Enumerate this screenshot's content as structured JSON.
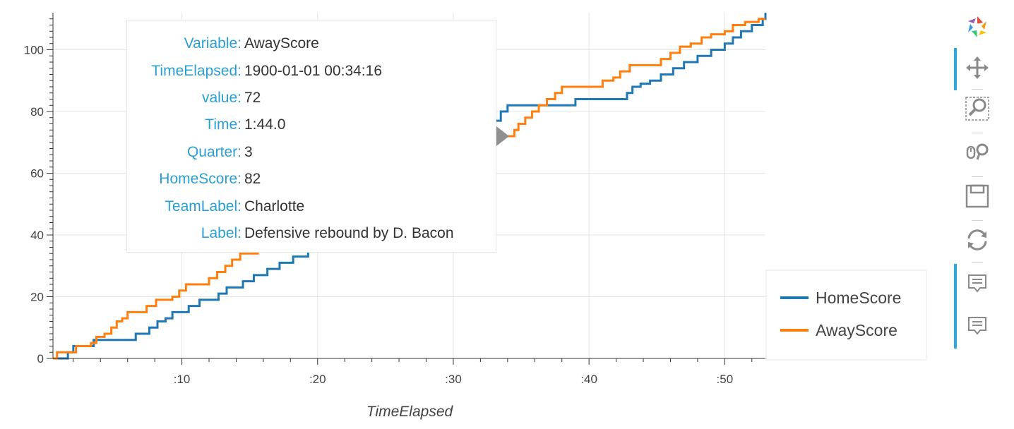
{
  "chart_data": {
    "type": "line",
    "xlabel": "TimeElapsed",
    "ylabel": "",
    "x_unit": "minutes elapsed",
    "xlim": [
      0.5,
      53
    ],
    "ylim": [
      0,
      112
    ],
    "x_ticks": [
      10,
      20,
      30,
      40,
      50
    ],
    "x_tick_labels": [
      ":10",
      ":20",
      ":30",
      ":40",
      ":50"
    ],
    "y_ticks": [
      0,
      20,
      40,
      60,
      80,
      100
    ],
    "y_tick_labels": [
      "0",
      "20",
      "40",
      "60",
      "80",
      "100"
    ],
    "grid": true,
    "legend_position": "right",
    "series": [
      {
        "name": "HomeScore",
        "color": "#1f77b4",
        "points": [
          [
            0.5,
            0
          ],
          [
            1.3,
            0
          ],
          [
            1.6,
            2
          ],
          [
            2.0,
            4
          ],
          [
            3.0,
            4
          ],
          [
            3.5,
            6
          ],
          [
            4.5,
            6
          ],
          [
            5.0,
            6
          ],
          [
            5.5,
            6
          ],
          [
            6.0,
            6
          ],
          [
            6.6,
            8
          ],
          [
            7.2,
            8
          ],
          [
            7.6,
            10
          ],
          [
            8.2,
            12
          ],
          [
            8.8,
            13
          ],
          [
            9.3,
            15
          ],
          [
            9.7,
            15
          ],
          [
            10.5,
            17
          ],
          [
            11.3,
            19
          ],
          [
            12.0,
            19
          ],
          [
            12.7,
            21
          ],
          [
            13.3,
            23
          ],
          [
            13.8,
            23
          ],
          [
            14.5,
            25
          ],
          [
            15.3,
            27
          ],
          [
            16.3,
            29
          ],
          [
            17.2,
            31
          ],
          [
            18.2,
            33
          ],
          [
            19.3,
            35
          ],
          [
            20.1,
            37
          ],
          [
            21.2,
            39
          ],
          [
            22.0,
            41
          ],
          [
            22.8,
            43
          ],
          [
            23.7,
            45
          ],
          [
            24.6,
            47
          ],
          [
            25.4,
            49
          ],
          [
            26.2,
            51
          ],
          [
            27.1,
            53
          ],
          [
            28.0,
            56
          ],
          [
            28.7,
            59
          ],
          [
            29.4,
            62
          ],
          [
            30.1,
            65
          ],
          [
            30.9,
            68
          ],
          [
            31.7,
            71
          ],
          [
            32.3,
            74
          ],
          [
            32.9,
            77
          ],
          [
            33.5,
            80
          ],
          [
            34.0,
            82
          ],
          [
            36.0,
            82
          ],
          [
            38.0,
            82
          ],
          [
            39.0,
            84
          ],
          [
            41.0,
            84
          ],
          [
            42.4,
            84
          ],
          [
            42.8,
            86
          ],
          [
            43.2,
            88
          ],
          [
            43.8,
            89
          ],
          [
            44.5,
            90
          ],
          [
            45.3,
            92
          ],
          [
            46.2,
            94
          ],
          [
            47.0,
            96
          ],
          [
            48.0,
            98
          ],
          [
            49.0,
            100
          ],
          [
            50.0,
            102
          ],
          [
            50.6,
            104
          ],
          [
            51.2,
            106
          ],
          [
            52.0,
            108
          ],
          [
            52.8,
            110
          ],
          [
            53.0,
            112
          ]
        ]
      },
      {
        "name": "AwayScore",
        "color": "#ff7f0e",
        "points": [
          [
            0.5,
            0
          ],
          [
            0.8,
            2
          ],
          [
            1.5,
            2
          ],
          [
            2.2,
            4
          ],
          [
            2.8,
            4
          ],
          [
            3.3,
            5
          ],
          [
            3.7,
            7
          ],
          [
            4.3,
            8
          ],
          [
            4.8,
            10
          ],
          [
            5.2,
            12
          ],
          [
            5.6,
            13
          ],
          [
            6.0,
            15
          ],
          [
            7.0,
            15
          ],
          [
            7.4,
            17
          ],
          [
            8.1,
            19
          ],
          [
            9.0,
            19
          ],
          [
            9.3,
            20
          ],
          [
            9.8,
            22
          ],
          [
            10.3,
            24
          ],
          [
            11.6,
            24
          ],
          [
            12.0,
            26
          ],
          [
            12.6,
            28
          ],
          [
            13.2,
            30
          ],
          [
            13.7,
            32
          ],
          [
            14.3,
            34
          ],
          [
            14.8,
            34
          ],
          [
            15.6,
            36
          ],
          [
            16.4,
            38
          ],
          [
            17.3,
            40
          ],
          [
            18.2,
            43
          ],
          [
            19.0,
            46
          ],
          [
            19.8,
            48
          ],
          [
            20.6,
            50
          ],
          [
            21.4,
            52
          ],
          [
            22.2,
            54
          ],
          [
            23.0,
            56
          ],
          [
            23.8,
            58
          ],
          [
            24.6,
            60
          ],
          [
            25.4,
            62
          ],
          [
            26.2,
            64
          ],
          [
            27.0,
            65
          ],
          [
            27.8,
            66
          ],
          [
            28.6,
            67
          ],
          [
            29.4,
            68
          ],
          [
            30.2,
            69
          ],
          [
            31.0,
            70
          ],
          [
            31.8,
            71
          ],
          [
            32.6,
            72
          ],
          [
            33.6,
            72
          ],
          [
            34.2,
            72
          ],
          [
            34.5,
            74
          ],
          [
            34.8,
            76
          ],
          [
            35.3,
            78
          ],
          [
            35.8,
            80
          ],
          [
            36.3,
            82
          ],
          [
            36.9,
            84
          ],
          [
            37.5,
            86
          ],
          [
            38.0,
            88
          ],
          [
            40.0,
            88
          ],
          [
            41.0,
            90
          ],
          [
            41.8,
            91
          ],
          [
            42.3,
            93
          ],
          [
            43.0,
            95
          ],
          [
            44.0,
            95
          ],
          [
            45.0,
            95
          ],
          [
            45.3,
            97
          ],
          [
            46.0,
            99
          ],
          [
            46.7,
            101
          ],
          [
            47.5,
            102
          ],
          [
            48.3,
            104
          ],
          [
            49.0,
            105
          ],
          [
            50.0,
            106
          ],
          [
            50.6,
            108
          ],
          [
            51.5,
            109
          ],
          [
            52.5,
            110
          ],
          [
            53.0,
            110
          ]
        ]
      }
    ]
  },
  "tooltip": {
    "rows": [
      {
        "key": "Variable:",
        "value": "AwayScore"
      },
      {
        "key": "TimeElapsed:",
        "value": "1900-01-01 00:34:16"
      },
      {
        "key": "value:",
        "value": "72"
      },
      {
        "key": "Time:",
        "value": "1:44.0"
      },
      {
        "key": "Quarter:",
        "value": "3"
      },
      {
        "key": "HomeScore:",
        "value": "82"
      },
      {
        "key": "TeamLabel:",
        "value": "Charlotte"
      },
      {
        "key": "Label:",
        "value": "Defensive rebound by D. Bacon"
      }
    ],
    "key_color": "#2a9fd6"
  },
  "toolbar": {
    "tools": [
      {
        "icon": "bokeh-logo-icon",
        "active": false
      },
      {
        "icon": "pan-icon",
        "active": true
      },
      {
        "icon": "box-zoom-icon",
        "active": false
      },
      {
        "icon": "wheel-zoom-icon",
        "active": false
      },
      {
        "icon": "save-icon",
        "active": false
      },
      {
        "icon": "reset-icon",
        "active": false
      },
      {
        "icon": "hover-icon",
        "active": true
      },
      {
        "icon": "hover-icon",
        "active": true
      }
    ],
    "accent_color": "#26aae1"
  }
}
